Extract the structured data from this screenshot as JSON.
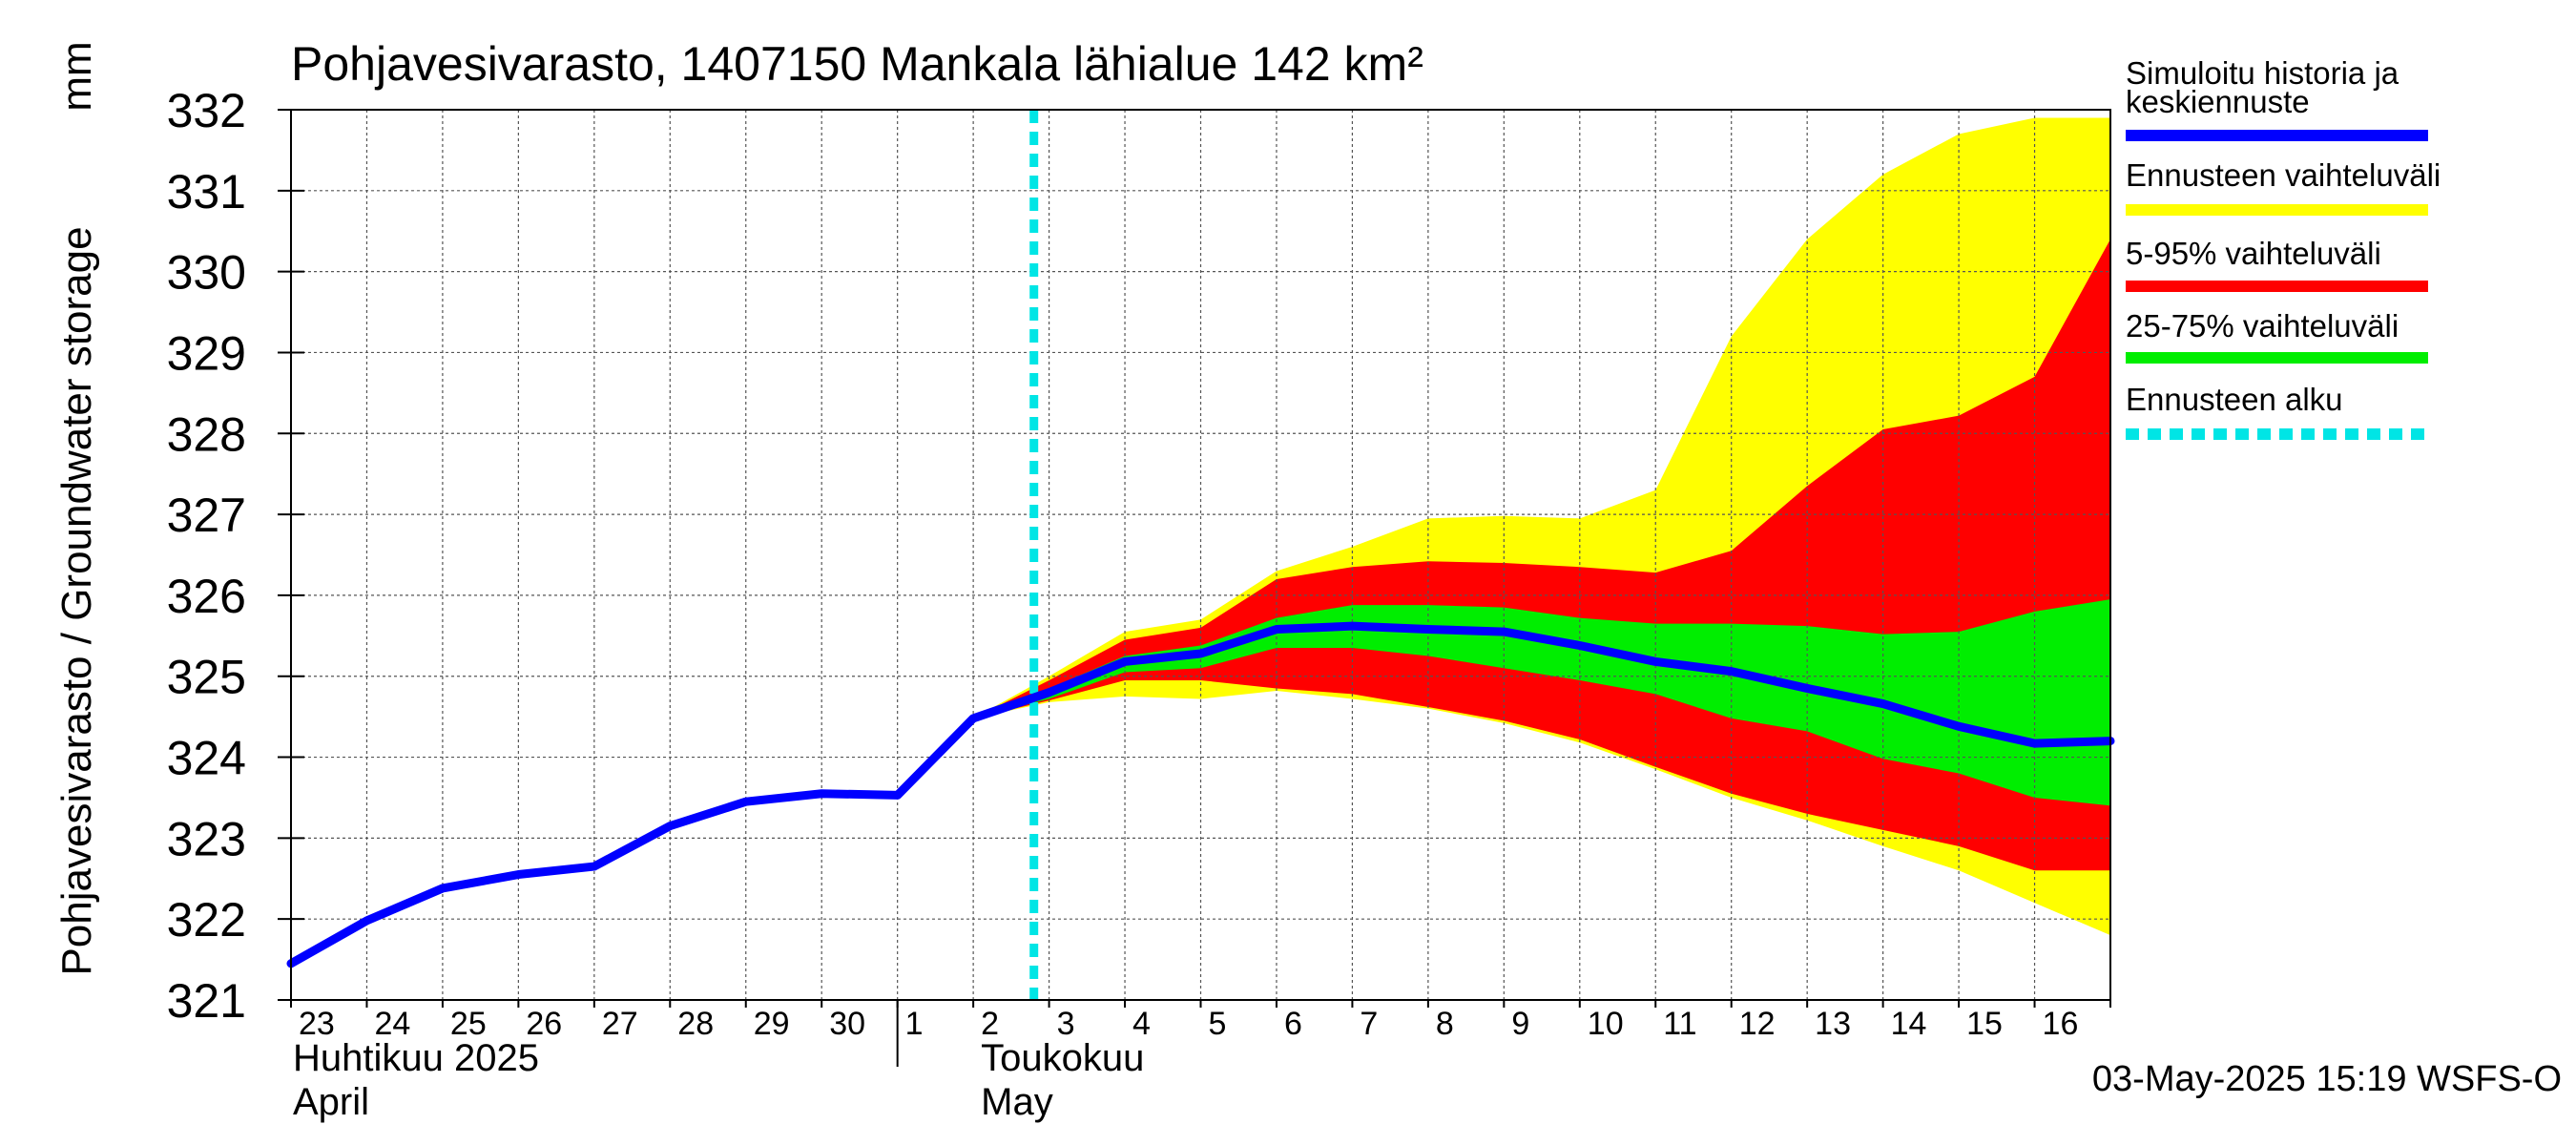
{
  "chart_data": {
    "type": "area",
    "title": "Pohjavesivarasto, 1407150 Mankala lähialue 142 km²",
    "ylabel": "Pohjavesivarasto / Groundwater storage",
    "yunit": "mm",
    "ylim": [
      321,
      332
    ],
    "yticks": [
      321,
      322,
      323,
      324,
      325,
      326,
      327,
      328,
      329,
      330,
      331,
      332
    ],
    "grid": true,
    "x_days": [
      "23",
      "24",
      "25",
      "26",
      "27",
      "28",
      "29",
      "30",
      "1",
      "2",
      "3",
      "4",
      "5",
      "6",
      "7",
      "8",
      "9",
      "10",
      "11",
      "12",
      "13",
      "14",
      "15",
      "16"
    ],
    "month_labels": [
      {
        "fi": "Huhtikuu  2025",
        "en": "April",
        "start_day_index": 0
      },
      {
        "fi": "Toukokuu",
        "en": "May",
        "start_day_index": 8
      }
    ],
    "forecast_start_day_index": 9.8,
    "x": [
      0,
      1,
      2,
      3,
      4,
      5,
      6,
      7,
      8,
      9,
      10,
      11,
      12,
      13,
      14,
      15,
      16,
      17,
      18,
      19,
      20,
      21,
      22,
      23,
      24
    ],
    "series": [
      {
        "name": "Simuloitu historia ja keskiennuste",
        "kind": "line",
        "color": "#0000ff",
        "values": [
          321.45,
          321.98,
          322.38,
          322.55,
          322.65,
          323.15,
          323.45,
          323.55,
          323.53,
          324.48,
          324.8,
          325.18,
          325.28,
          325.58,
          325.62,
          325.58,
          325.55,
          325.38,
          325.18,
          325.06,
          324.85,
          324.66,
          324.38,
          324.17,
          324.2
        ]
      }
    ],
    "bands": [
      {
        "name": "Ennusteen vaihteluväli",
        "color": "#ffff00",
        "start": 9,
        "upper": [
          324.48,
          325.0,
          325.55,
          325.7,
          326.3,
          326.6,
          326.95,
          326.98,
          326.95,
          327.3,
          329.2,
          330.4,
          331.2,
          331.7,
          331.9,
          331.9
        ],
        "lower": [
          324.48,
          324.68,
          324.75,
          324.72,
          324.82,
          324.72,
          324.6,
          324.42,
          324.18,
          323.85,
          323.5,
          323.22,
          322.9,
          322.6,
          322.2,
          321.8
        ]
      },
      {
        "name": "5-95% vaihteluväli",
        "color": "#ff0000",
        "start": 9,
        "upper": [
          324.48,
          324.95,
          325.45,
          325.6,
          326.2,
          326.35,
          326.42,
          326.4,
          326.35,
          326.28,
          326.55,
          327.35,
          328.05,
          328.22,
          328.7,
          330.4
        ],
        "lower": [
          324.48,
          324.7,
          324.95,
          324.95,
          324.85,
          324.78,
          324.62,
          324.45,
          324.22,
          323.88,
          323.55,
          323.3,
          323.1,
          322.9,
          322.6,
          322.6
        ]
      },
      {
        "name": "25-75% vaihteluväli",
        "color": "#00ee00",
        "start": 9,
        "upper": [
          324.48,
          324.85,
          325.25,
          325.38,
          325.72,
          325.88,
          325.88,
          325.85,
          325.72,
          325.65,
          325.65,
          325.62,
          325.52,
          325.55,
          325.8,
          325.95
        ],
        "lower": [
          324.48,
          324.72,
          325.05,
          325.1,
          325.35,
          325.35,
          325.25,
          325.1,
          324.95,
          324.78,
          324.48,
          324.32,
          323.98,
          323.8,
          323.5,
          323.4
        ]
      }
    ],
    "legend": [
      {
        "label": "Simuloitu historia ja\nkeskiennuste",
        "color": "#0000ff",
        "style": "solid"
      },
      {
        "label": "Ennusteen vaihteluväli",
        "color": "#ffff00",
        "style": "solid"
      },
      {
        "label": "5-95% vaihteluväli",
        "color": "#ff0000",
        "style": "solid"
      },
      {
        "label": "25-75% vaihteluväli",
        "color": "#00ee00",
        "style": "solid"
      },
      {
        "label": "Ennusteen alku",
        "color": "#00e5e5",
        "style": "dashed"
      }
    ],
    "legend_position": "right",
    "footer": "03-May-2025 15:19 WSFS-O"
  }
}
